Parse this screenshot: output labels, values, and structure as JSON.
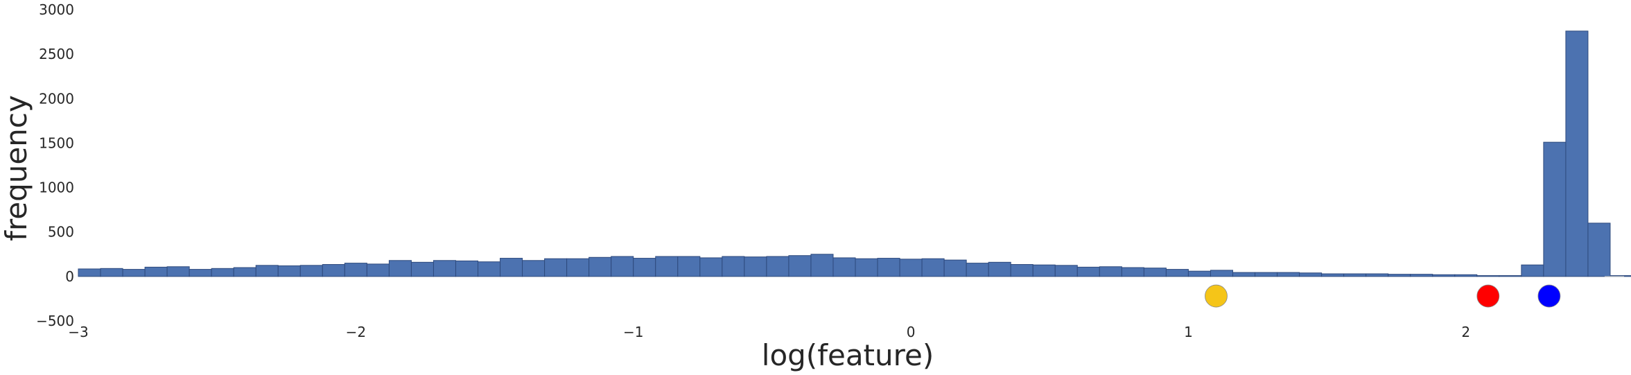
{
  "chart_data": {
    "type": "bar",
    "subtype": "histogram",
    "title": "",
    "xlabel": "log(feature)",
    "ylabel": "frequency",
    "xlim": [
      -3,
      2.57
    ],
    "ylim": [
      -500,
      3000
    ],
    "xticks": [
      -3,
      -2,
      -1,
      0,
      1,
      2
    ],
    "xtick_labels": [
      "−3",
      "−2",
      "−1",
      "0",
      "1",
      "2"
    ],
    "yticks": [
      -500,
      0,
      500,
      1000,
      1500,
      2000,
      2500,
      3000
    ],
    "ytick_labels": [
      "−500",
      "0",
      "500",
      "1000",
      "1500",
      "2000",
      "2500",
      "3000"
    ],
    "grid": false,
    "bar_color": "#4c72b0",
    "bin_start": -3.0,
    "bin_width": 0.08,
    "values": [
      85,
      90,
      80,
      105,
      110,
      80,
      90,
      100,
      125,
      120,
      125,
      135,
      150,
      140,
      180,
      160,
      180,
      175,
      165,
      205,
      180,
      200,
      200,
      215,
      225,
      205,
      225,
      225,
      210,
      225,
      220,
      225,
      235,
      250,
      210,
      200,
      205,
      195,
      200,
      185,
      150,
      160,
      135,
      130,
      125,
      105,
      110,
      100,
      95,
      80,
      60,
      70,
      45,
      45,
      45,
      40,
      30,
      30,
      30,
      25,
      25,
      20,
      20,
      10,
      10,
      130,
      1510,
      2760,
      600,
      10
    ],
    "markers": [
      {
        "x": 1.1,
        "y": -220,
        "color": "#f5c518"
      },
      {
        "x": 2.08,
        "y": -220,
        "color": "#ff0000"
      },
      {
        "x": 2.3,
        "y": -220,
        "color": "#0000ff"
      }
    ]
  }
}
